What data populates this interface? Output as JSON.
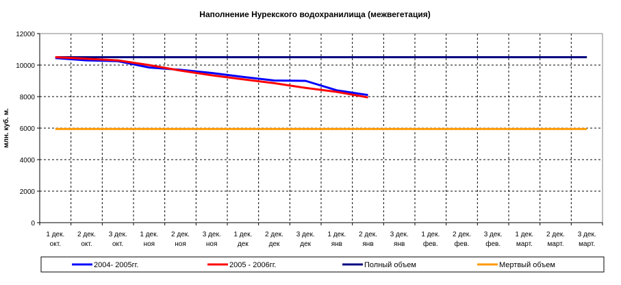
{
  "chart_data": {
    "type": "line",
    "title": "Наполнение Нурекского водохранилища (межвегетация)",
    "ylabel": "млн. куб. м.",
    "xlabel": "",
    "ylim": [
      0,
      12000
    ],
    "yticks": [
      0,
      2000,
      4000,
      6000,
      8000,
      10000,
      12000
    ],
    "grid": true,
    "legend_position": "bottom",
    "categories": [
      [
        "1 дек.",
        "окт."
      ],
      [
        "2 дек.",
        "окт."
      ],
      [
        "3 дек.",
        "окт."
      ],
      [
        "1 дек.",
        "ноя"
      ],
      [
        "2 дек.",
        "ноя"
      ],
      [
        "3 дек.",
        "ноя"
      ],
      [
        "1 дек.",
        "дек"
      ],
      [
        "2 дек.",
        "дек"
      ],
      [
        "3 дек.",
        "дек"
      ],
      [
        "1 дек.",
        "янв"
      ],
      [
        "2 дек.",
        "янв"
      ],
      [
        "3 дек.",
        "янв"
      ],
      [
        "1 дек.",
        "фев."
      ],
      [
        "2 дек.",
        "фев."
      ],
      [
        "3 дек.",
        "фев."
      ],
      [
        "1 дек.",
        "март."
      ],
      [
        "2 дек.",
        "март."
      ],
      [
        "3 дек.",
        "март."
      ]
    ],
    "series": [
      {
        "name": "2004- 2005гг.",
        "color": "#0000ff",
        "values": [
          10450,
          10300,
          10250,
          9850,
          9700,
          9500,
          9250,
          9020,
          9000,
          8400,
          8100,
          null,
          null,
          null,
          null,
          null,
          null,
          null
        ]
      },
      {
        "name": "2005 - 2006гг.",
        "color": "#ff0000",
        "values": [
          10500,
          10400,
          10300,
          10000,
          9650,
          9350,
          9100,
          8850,
          8550,
          8300,
          7950,
          null,
          null,
          null,
          null,
          null,
          null,
          null
        ]
      },
      {
        "name": "Полный объем",
        "color": "#000080",
        "values": [
          10500,
          10500,
          10500,
          10500,
          10500,
          10500,
          10500,
          10500,
          10500,
          10500,
          10500,
          10500,
          10500,
          10500,
          10500,
          10500,
          10500,
          10500
        ]
      },
      {
        "name": "Мертвый объем",
        "color": "#ff9900",
        "values": [
          5950,
          5950,
          5950,
          5950,
          5950,
          5950,
          5950,
          5950,
          5950,
          5950,
          5950,
          5950,
          5950,
          5950,
          5950,
          5950,
          5950,
          5950
        ]
      }
    ]
  }
}
